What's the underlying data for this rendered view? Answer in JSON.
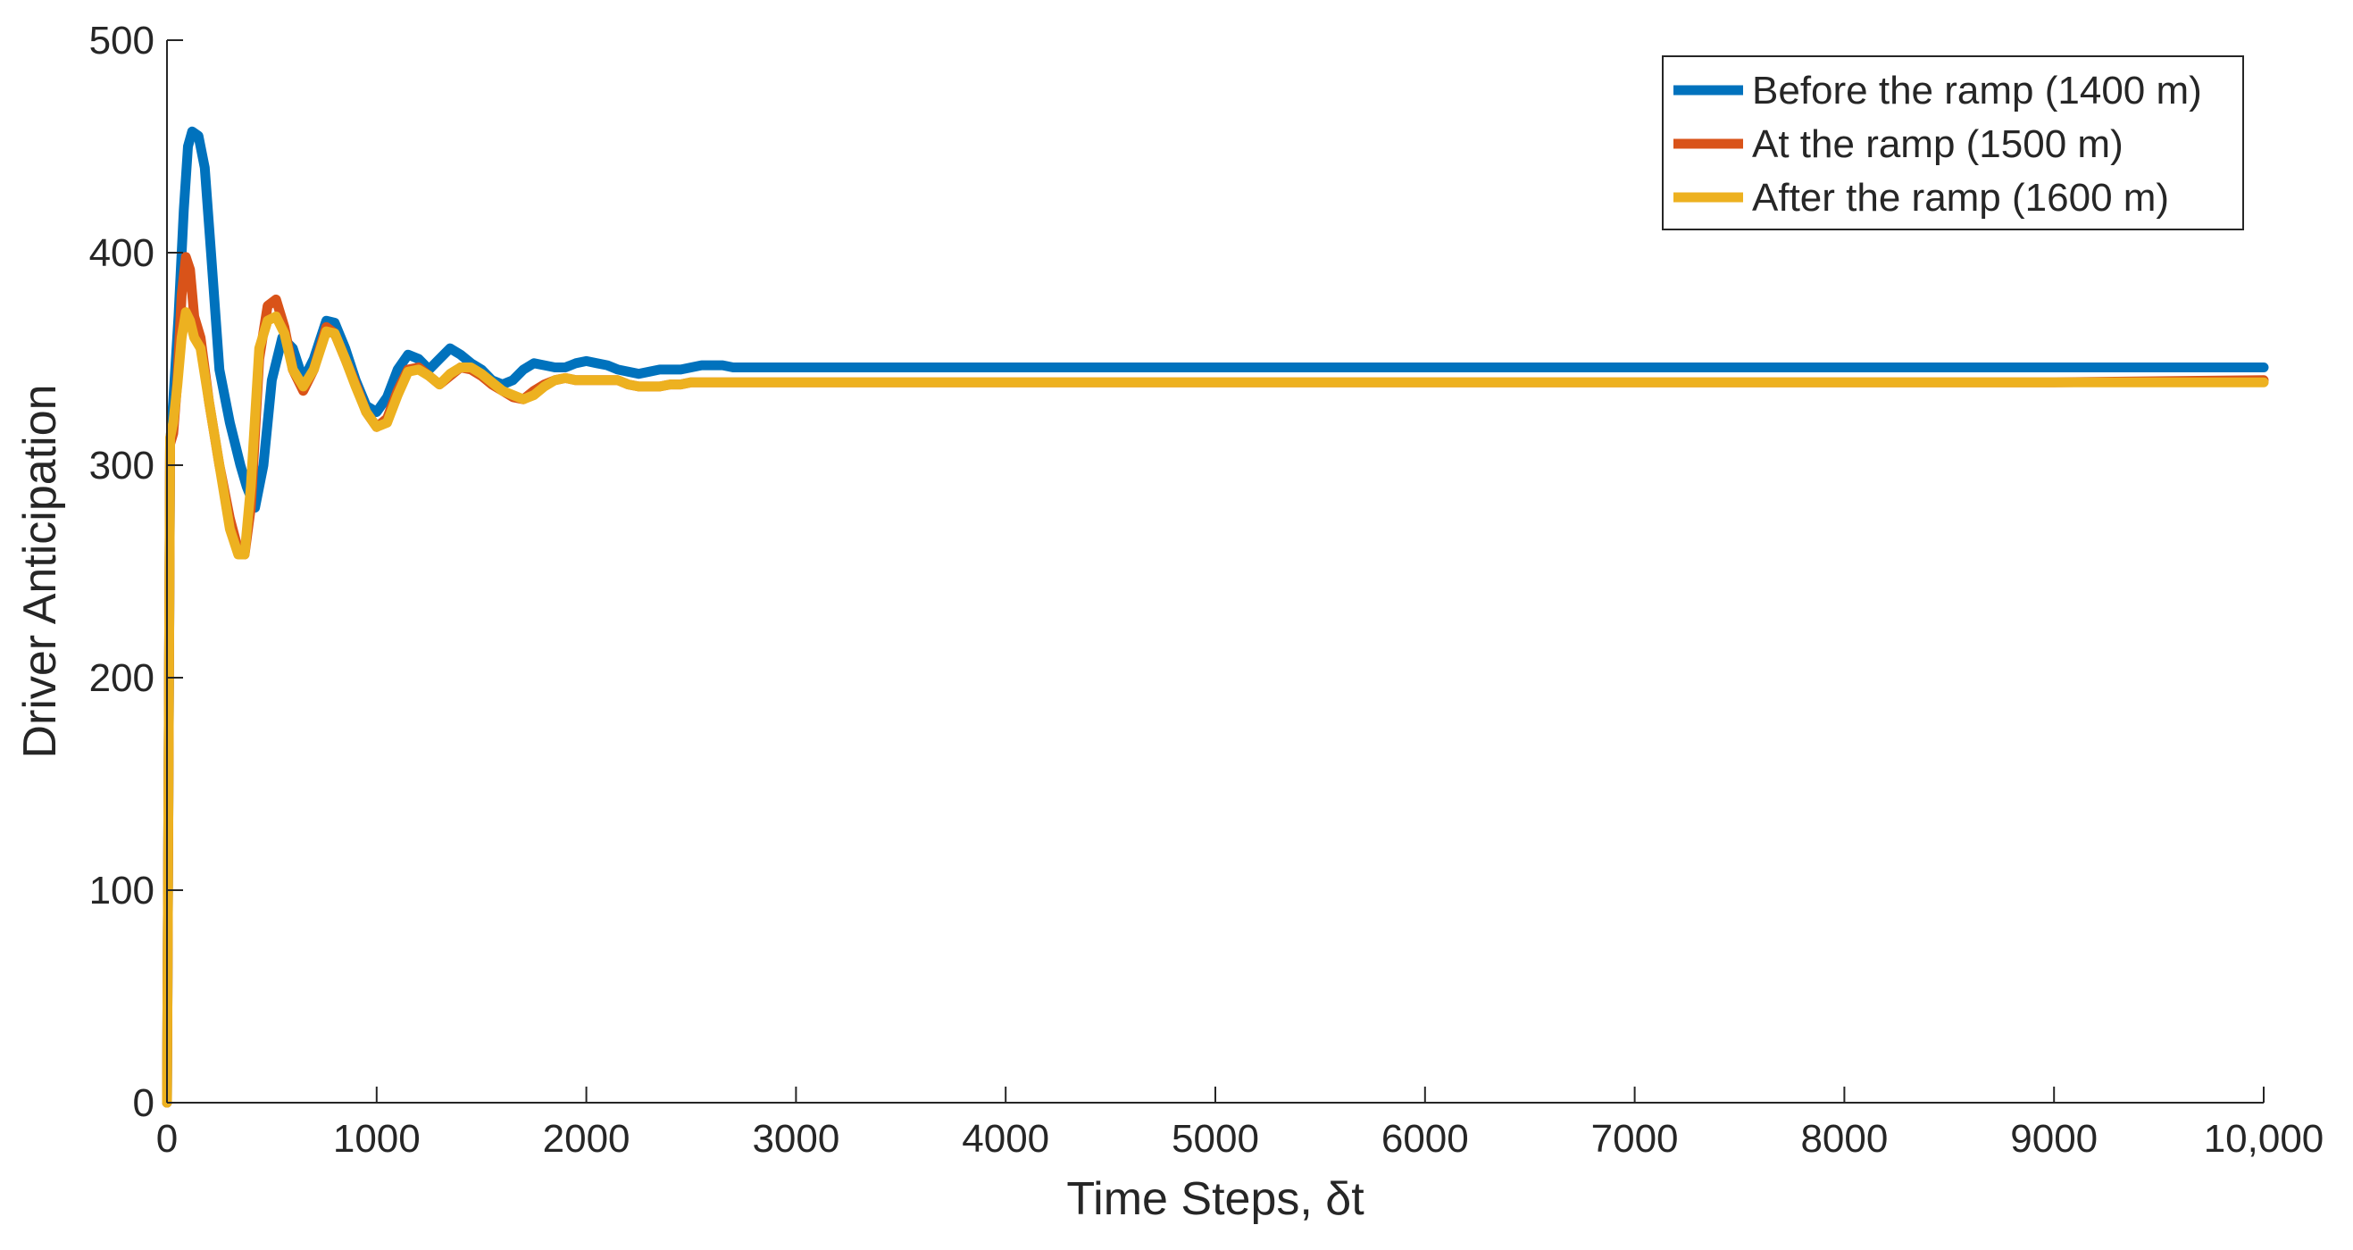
{
  "chart_data": {
    "type": "line",
    "title": "",
    "xlabel": "Time Steps, δt",
    "ylabel": "Driver Anticipation",
    "xlim": [
      0,
      10000
    ],
    "ylim": [
      0,
      500
    ],
    "x_ticks": [
      0,
      1000,
      2000,
      3000,
      4000,
      5000,
      6000,
      7000,
      8000,
      9000,
      10000
    ],
    "x_tick_labels": [
      "0",
      "1000",
      "2000",
      "3000",
      "4000",
      "5000",
      "6000",
      "7000",
      "8000",
      "9000",
      "10,000"
    ],
    "y_ticks": [
      0,
      100,
      200,
      300,
      400,
      500
    ],
    "y_tick_labels": [
      "0",
      "100",
      "200",
      "300",
      "400",
      "500"
    ],
    "grid": false,
    "legend_position": "top-right",
    "series": [
      {
        "name": "Before the ramp (1400 m)",
        "color": "#0072BD",
        "x": [
          0,
          15,
          30,
          55,
          80,
          100,
          120,
          150,
          180,
          210,
          250,
          300,
          350,
          380,
          420,
          460,
          500,
          550,
          600,
          650,
          700,
          760,
          800,
          850,
          900,
          950,
          1000,
          1050,
          1100,
          1150,
          1200,
          1250,
          1300,
          1350,
          1400,
          1450,
          1500,
          1550,
          1600,
          1650,
          1700,
          1750,
          1800,
          1850,
          1900,
          1950,
          2000,
          2050,
          2100,
          2150,
          2200,
          2250,
          2300,
          2350,
          2400,
          2450,
          2500,
          2550,
          2600,
          2650,
          2700,
          2750,
          2800,
          2900,
          3000,
          3100,
          3200,
          3300,
          3400,
          3500,
          3600,
          3700,
          3800,
          4000,
          5000,
          6000,
          7000,
          8000,
          9000,
          10000
        ],
        "y": [
          0,
          310,
          330,
          370,
          420,
          450,
          457,
          455,
          440,
          400,
          345,
          320,
          300,
          290,
          280,
          300,
          340,
          360,
          355,
          340,
          350,
          368,
          367,
          355,
          340,
          328,
          325,
          332,
          345,
          352,
          350,
          345,
          350,
          355,
          352,
          348,
          345,
          340,
          338,
          340,
          345,
          348,
          347,
          346,
          346,
          348,
          349,
          348,
          347,
          345,
          344,
          343,
          344,
          345,
          345,
          345,
          346,
          347,
          347,
          347,
          346,
          346,
          346,
          346,
          346,
          346,
          346,
          346,
          346,
          346,
          346,
          346,
          346,
          346,
          346,
          346,
          346,
          346,
          346,
          346
        ]
      },
      {
        "name": "At the ramp (1500 m)",
        "color": "#D95319",
        "x": [
          0,
          15,
          30,
          50,
          70,
          90,
          110,
          130,
          160,
          200,
          250,
          300,
          340,
          370,
          400,
          440,
          480,
          520,
          560,
          600,
          650,
          700,
          760,
          800,
          850,
          900,
          950,
          1000,
          1050,
          1100,
          1150,
          1200,
          1250,
          1300,
          1350,
          1400,
          1450,
          1500,
          1550,
          1600,
          1650,
          1700,
          1750,
          1800,
          1850,
          1900,
          1950,
          2000,
          2050,
          2100,
          2150,
          2200,
          2250,
          2300,
          2350,
          2400,
          2450,
          2500,
          2550,
          2600,
          2650,
          2700,
          2800,
          2900,
          3000,
          3100,
          3200,
          3400,
          3600,
          3800,
          4000,
          5000,
          6000,
          7000,
          8000,
          9000,
          10000
        ],
        "y": [
          0,
          310,
          315,
          340,
          380,
          398,
          392,
          370,
          360,
          330,
          300,
          275,
          260,
          258,
          280,
          350,
          375,
          378,
          365,
          345,
          335,
          345,
          365,
          362,
          350,
          338,
          325,
          318,
          322,
          335,
          345,
          346,
          342,
          338,
          342,
          346,
          345,
          342,
          338,
          335,
          332,
          331,
          335,
          338,
          340,
          341,
          340,
          340,
          340,
          340,
          340,
          338,
          337,
          337,
          337,
          338,
          338,
          339,
          339,
          339,
          339,
          339,
          339,
          339,
          339,
          339,
          339,
          339,
          339,
          339,
          339,
          339,
          339,
          339,
          339,
          339,
          340
        ]
      },
      {
        "name": "After the ramp (1600 m)",
        "color": "#EDB120",
        "x": [
          0,
          15,
          30,
          50,
          70,
          90,
          110,
          130,
          160,
          200,
          250,
          300,
          340,
          370,
          400,
          440,
          480,
          520,
          560,
          600,
          650,
          700,
          760,
          800,
          850,
          900,
          950,
          1000,
          1050,
          1100,
          1150,
          1200,
          1250,
          1300,
          1350,
          1400,
          1450,
          1500,
          1550,
          1600,
          1650,
          1700,
          1750,
          1800,
          1850,
          1900,
          1950,
          2000,
          2050,
          2100,
          2150,
          2200,
          2250,
          2300,
          2350,
          2400,
          2450,
          2500,
          2550,
          2600,
          2650,
          2700,
          2800,
          2900,
          3000,
          3100,
          3200,
          3400,
          3600,
          3800,
          4000,
          5000,
          6000,
          7000,
          8000,
          9000,
          10000
        ],
        "y": [
          0,
          313,
          320,
          338,
          360,
          372,
          368,
          360,
          355,
          330,
          300,
          270,
          258,
          258,
          290,
          355,
          368,
          370,
          362,
          345,
          337,
          345,
          363,
          362,
          350,
          337,
          325,
          318,
          320,
          333,
          344,
          345,
          342,
          338,
          343,
          346,
          346,
          343,
          339,
          335,
          333,
          331,
          333,
          337,
          340,
          341,
          340,
          340,
          340,
          340,
          340,
          338,
          337,
          337,
          337,
          338,
          338,
          339,
          339,
          339,
          339,
          339,
          339,
          339,
          339,
          339,
          339,
          339,
          339,
          339,
          339,
          339,
          339,
          339,
          339,
          339,
          339
        ]
      }
    ]
  }
}
